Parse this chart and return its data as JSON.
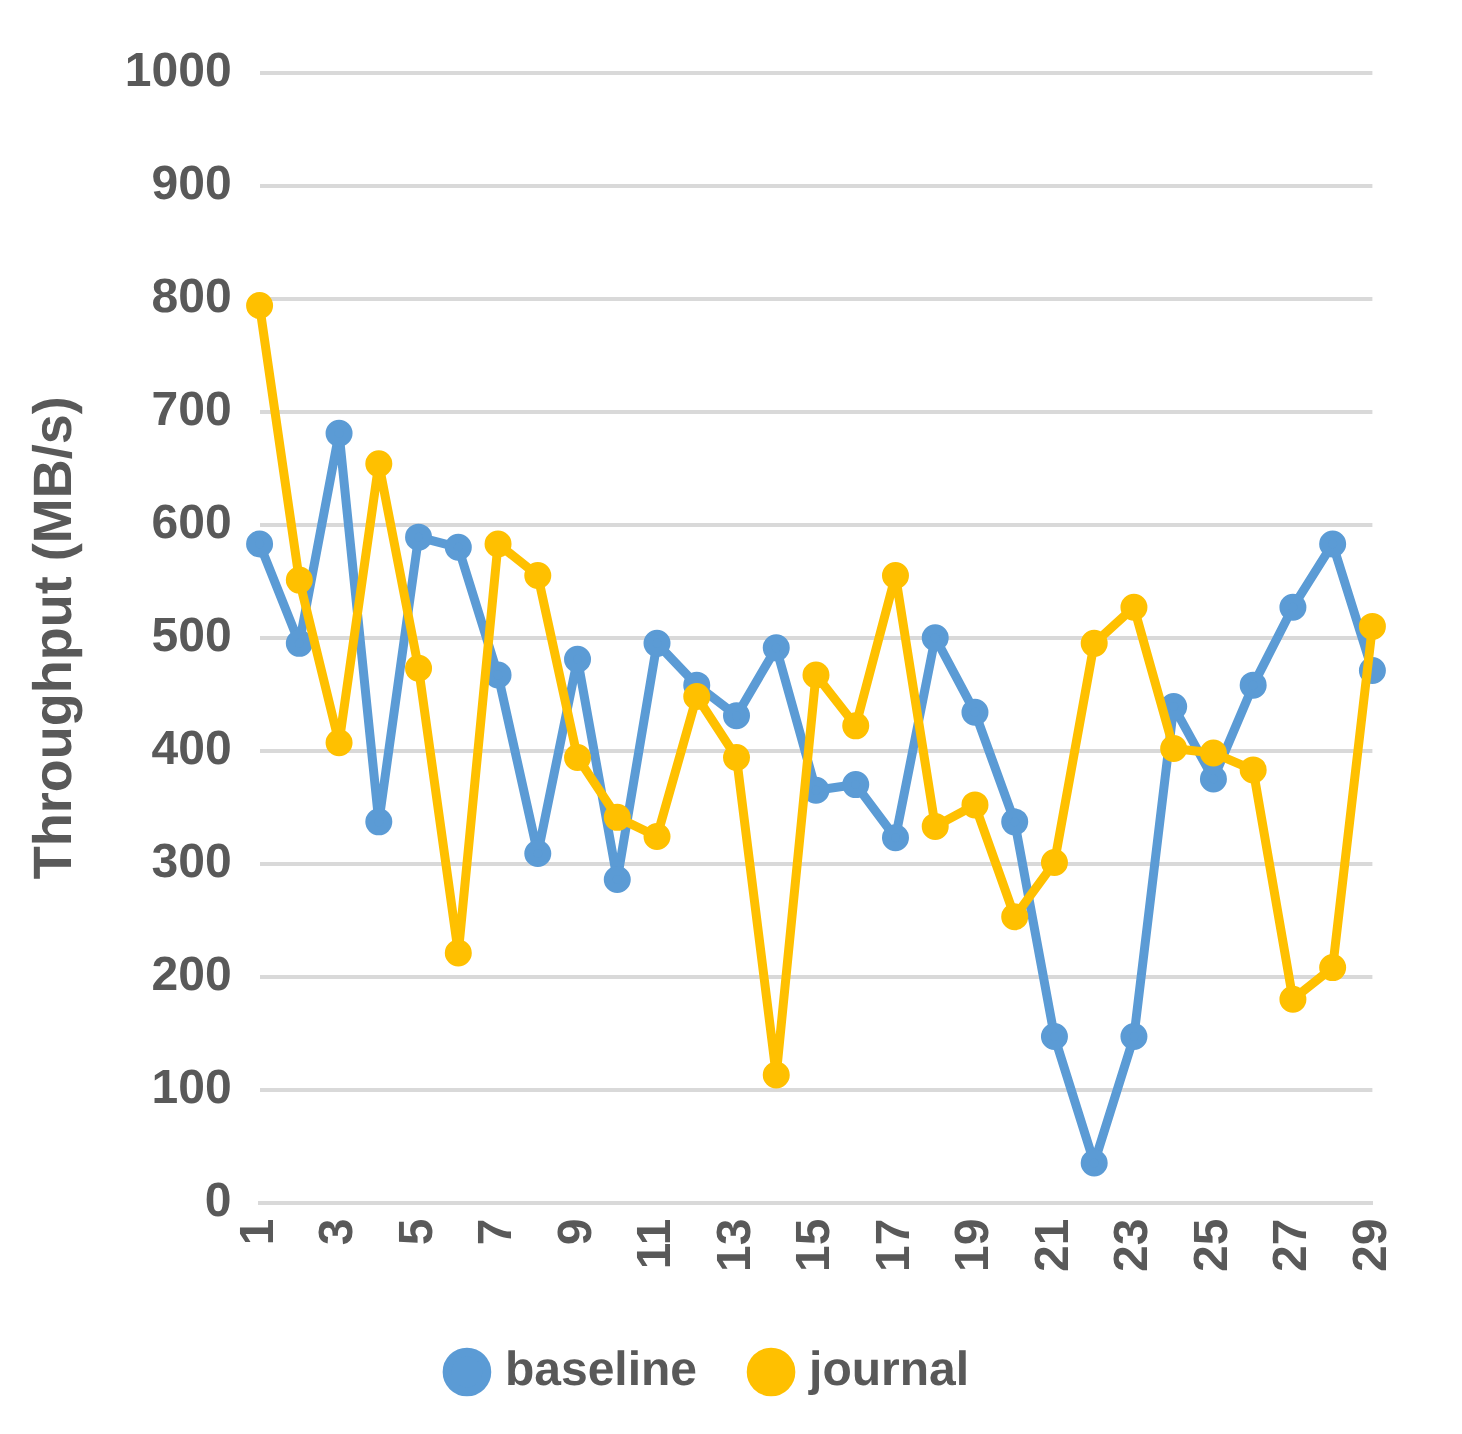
{
  "chart_data": {
    "type": "line",
    "ylabel": "Throughput (MB/s)",
    "categories": [
      "1",
      null,
      "3",
      null,
      "5",
      null,
      "7",
      null,
      "9",
      null,
      "11",
      null,
      "13",
      null,
      "15",
      null,
      "17",
      null,
      "19",
      null,
      "21",
      null,
      "23",
      null,
      "25",
      null,
      "27",
      null,
      "29"
    ],
    "series": [
      {
        "name": "baseline",
        "color": "#5b9bd5",
        "values": [
          583,
          495,
          681,
          337,
          589,
          580,
          467,
          309,
          481,
          286,
          495,
          458,
          431,
          491,
          365,
          370,
          323,
          500,
          434,
          337,
          147,
          35,
          147,
          439,
          375,
          458,
          527,
          583,
          471
        ]
      },
      {
        "name": "journal",
        "color": "#ffc000",
        "values": [
          794,
          551,
          407,
          654,
          473,
          221,
          583,
          555,
          394,
          341,
          324,
          448,
          394,
          113,
          467,
          422,
          555,
          333,
          352,
          253,
          301,
          495,
          527,
          402,
          398,
          383,
          180,
          208,
          510
        ]
      }
    ],
    "ylim": [
      0,
      1000
    ],
    "yticks": [
      0,
      100,
      200,
      300,
      400,
      500,
      600,
      700,
      800,
      900,
      1000
    ],
    "grid": "y",
    "legend": "bottom",
    "marker": "circle",
    "line_style": "solid"
  }
}
